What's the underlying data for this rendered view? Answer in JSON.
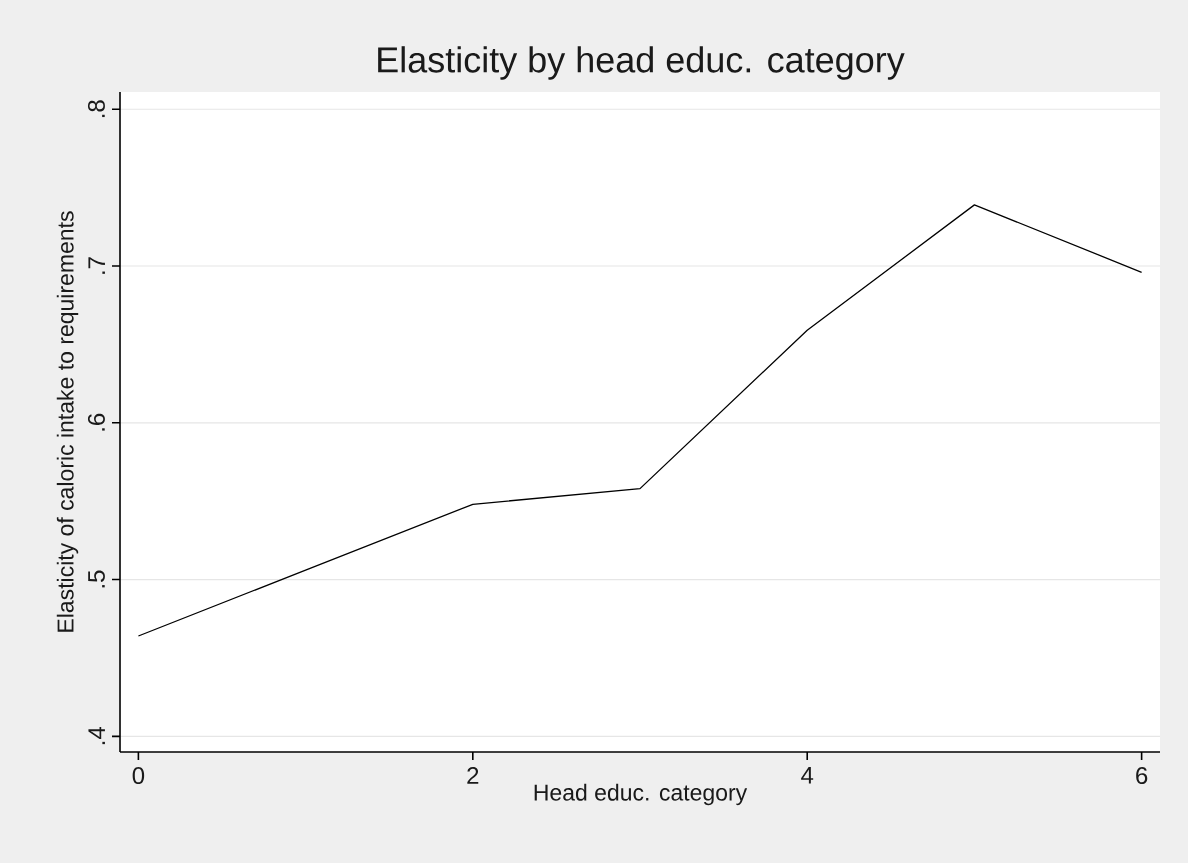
{
  "chart_data": {
    "type": "line",
    "title": "Elasticity by head educ. category",
    "xlabel": "Head educ. category",
    "ylabel": "Elasticity of caloric intake to requirements",
    "x": [
      0,
      1,
      2,
      3,
      4,
      5,
      6
    ],
    "series": [
      {
        "color": "#000000",
        "values": [
          0.464,
          0.506,
          0.548,
          0.558,
          0.659,
          0.739,
          0.696
        ]
      }
    ],
    "xlim": [
      -0.11,
      6.11
    ],
    "ylim": [
      0.39,
      0.811
    ],
    "xticks": [
      0,
      2,
      4,
      6
    ],
    "yticks": [
      {
        "value": 0.4,
        "label": ".4"
      },
      {
        "value": 0.5,
        "label": ".5"
      },
      {
        "value": 0.6,
        "label": ".6"
      },
      {
        "value": 0.7,
        "label": ".7"
      },
      {
        "value": 0.8,
        "label": ".8"
      }
    ],
    "grid": "y",
    "marker": "none",
    "line_style": "solid"
  }
}
